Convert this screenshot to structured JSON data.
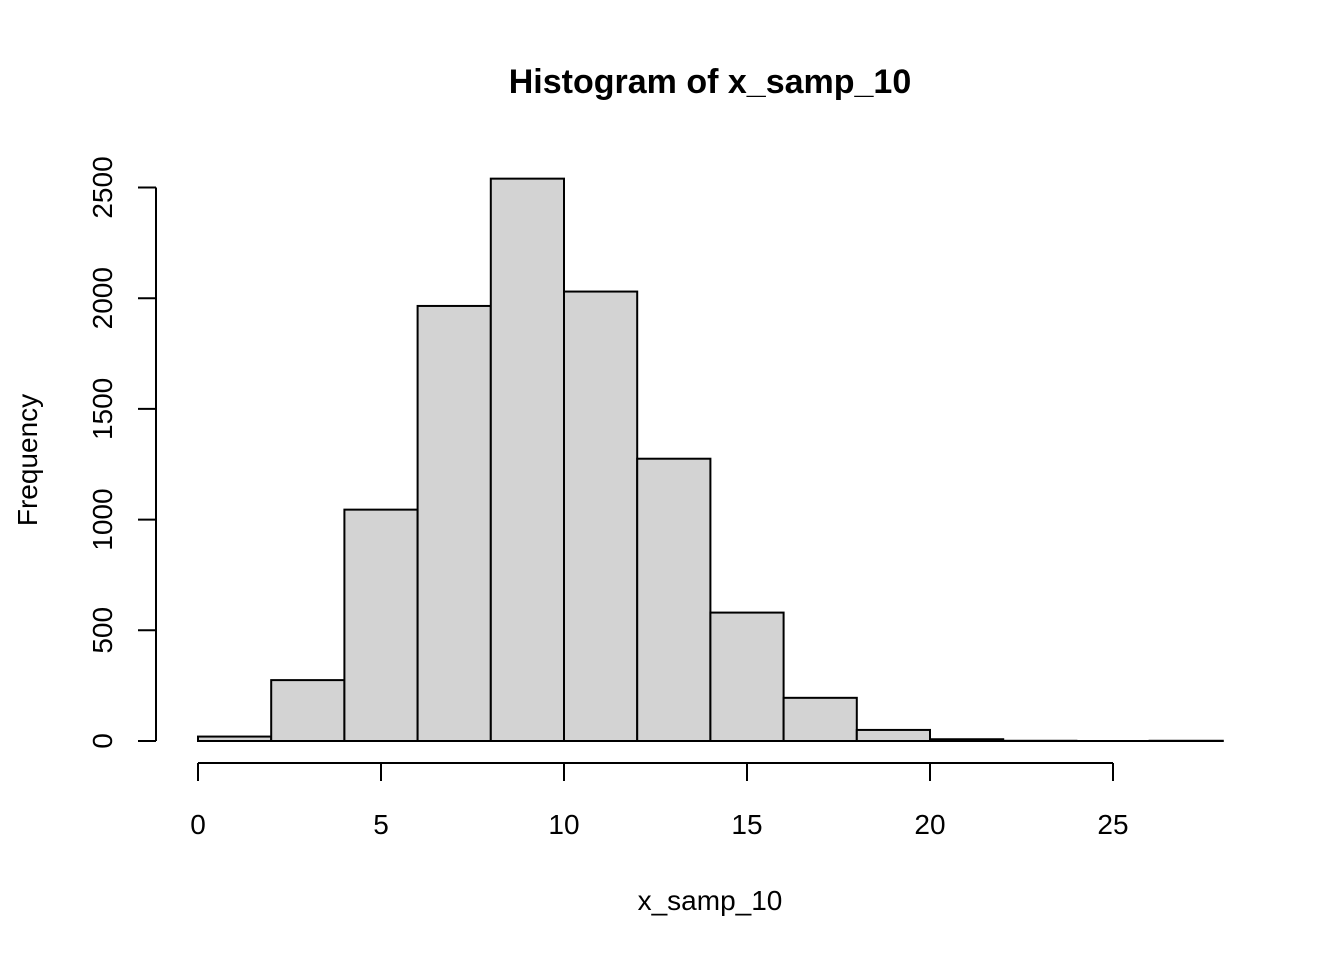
{
  "chart_data": {
    "type": "bar",
    "title": "Histogram of x_samp_10",
    "xlabel": "x_samp_10",
    "ylabel": "Frequency",
    "bin_edges": [
      0,
      2,
      4,
      6,
      8,
      10,
      12,
      14,
      16,
      18,
      20,
      22,
      24,
      26,
      28
    ],
    "values": [
      20,
      275,
      1045,
      1965,
      2540,
      2030,
      1275,
      580,
      195,
      50,
      8,
      1,
      0,
      1
    ],
    "xlim": [
      0,
      28
    ],
    "ylim": [
      0,
      2500
    ],
    "x_ticks": [
      0,
      5,
      10,
      15,
      20,
      25
    ],
    "x_tick_labels": [
      "0",
      "5",
      "10",
      "15",
      "20",
      "25"
    ],
    "y_ticks": [
      0,
      500,
      1000,
      1500,
      2000,
      2500
    ],
    "y_tick_labels": [
      "0",
      "500",
      "1000",
      "1500",
      "2000",
      "2500"
    ],
    "bar_fill": "#d3d3d3",
    "bar_stroke": "#000000",
    "grid": false,
    "legend": "none"
  }
}
